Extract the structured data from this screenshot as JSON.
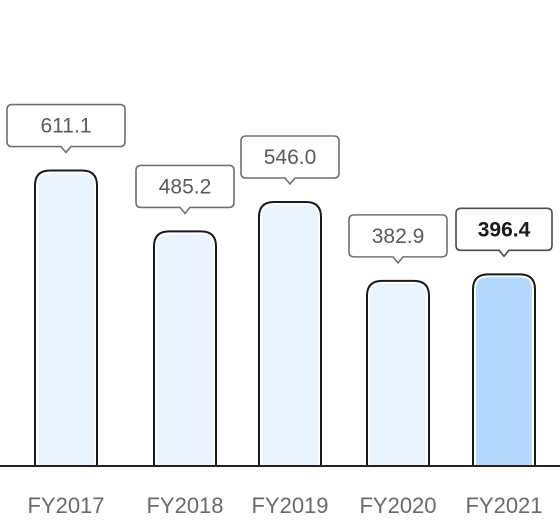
{
  "chart_data": {
    "type": "bar",
    "categories": [
      "FY2017",
      "FY2018",
      "FY2019",
      "FY2020",
      "FY2021"
    ],
    "values": [
      611.1,
      485.2,
      546.0,
      382.9,
      396.4
    ],
    "data_labels": [
      "611.1",
      "485.2",
      "546.0",
      "382.9",
      "396.4"
    ],
    "highlighted_category": "FY2021",
    "title": "",
    "xlabel": "",
    "ylabel": "",
    "grid": false,
    "legend": "none"
  },
  "colors": {
    "bar_fill": "#eaf4ff",
    "bar_highlight_fill": "#b3d8fb",
    "bar_outline": "#1a1a1a",
    "axis": "#222222"
  }
}
